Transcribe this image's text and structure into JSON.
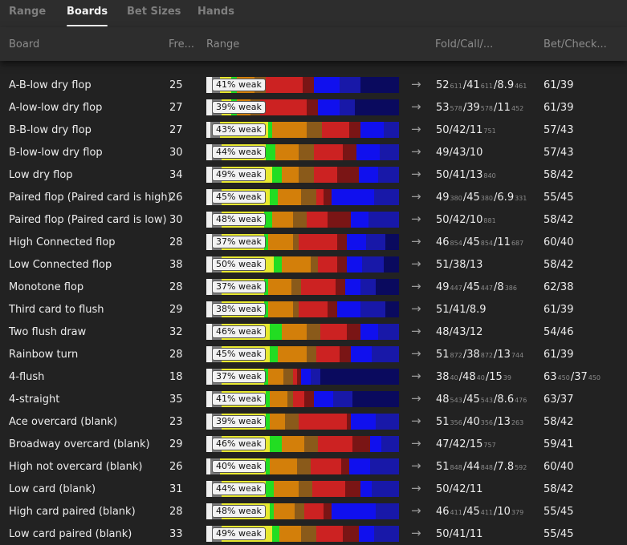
{
  "tabs": [
    {
      "label": "Range",
      "active": false
    },
    {
      "label": "Boards",
      "active": true
    },
    {
      "label": "Bet Sizes",
      "active": false
    },
    {
      "label": "Hands",
      "active": false
    }
  ],
  "columns": {
    "board": "Board",
    "freq": "Fre...",
    "range": "Range",
    "fold_call": "Fold/Call/...",
    "bet_check": "Bet/Check..."
  },
  "arrow": "→",
  "colors": {
    "white": "#f0f0f0",
    "grey": "#7a7a7a",
    "yellow": "#e8e830",
    "green": "#22dd22",
    "orange": "#d37f0a",
    "brown": "#8a5a1a",
    "red": "#cc2222",
    "darkred": "#7a1515",
    "blue": "#1010ee",
    "midblue": "#1818a8",
    "navy": "#0a0a5e"
  },
  "rows": [
    {
      "board": "A-B-low dry flop",
      "freq": "25",
      "weak": "41% weak",
      "bar": [
        [
          "white",
          3
        ],
        [
          "grey",
          4
        ],
        [
          "yellow",
          6
        ],
        [
          "green",
          3
        ],
        [
          "orange",
          9
        ],
        [
          "brown",
          6
        ],
        [
          "red",
          19
        ],
        [
          "darkred",
          6
        ],
        [
          "blue",
          13
        ],
        [
          "midblue",
          11
        ],
        [
          "navy",
          20
        ]
      ],
      "fold": [
        {
          "v": "52",
          "s": "611"
        },
        {
          "v": "/41",
          "s": "611"
        },
        {
          "v": "/8.9",
          "s": "461"
        }
      ],
      "bet": "61/39"
    },
    {
      "board": "A-low-low dry flop",
      "freq": "27",
      "weak": "39% weak",
      "bar": [
        [
          "white",
          3
        ],
        [
          "grey",
          5
        ],
        [
          "yellow",
          5
        ],
        [
          "green",
          3
        ],
        [
          "orange",
          7
        ],
        [
          "brown",
          5
        ],
        [
          "red",
          24
        ],
        [
          "darkred",
          6
        ],
        [
          "blue",
          11
        ],
        [
          "midblue",
          8
        ],
        [
          "navy",
          23
        ]
      ],
      "fold": [
        {
          "v": "53",
          "s": "578"
        },
        {
          "v": "/39",
          "s": "578"
        },
        {
          "v": "/11",
          "s": "452"
        }
      ],
      "bet": "61/39"
    },
    {
      "board": "B-B-low dry flop",
      "freq": "27",
      "weak": "43% weak",
      "bar": [
        [
          "white",
          2
        ],
        [
          "grey",
          5
        ],
        [
          "yellow",
          25
        ],
        [
          "green",
          2
        ],
        [
          "orange",
          18
        ],
        [
          "brown",
          8
        ],
        [
          "red",
          14
        ],
        [
          "darkred",
          6
        ],
        [
          "blue",
          12
        ],
        [
          "midblue",
          8
        ],
        [
          "navy",
          0
        ]
      ],
      "fold": [
        {
          "v": "50/42/11",
          "s": "751"
        }
      ],
      "bet": "57/43"
    },
    {
      "board": "B-low-low dry flop",
      "freq": "30",
      "weak": "44% weak",
      "bar": [
        [
          "white",
          3
        ],
        [
          "grey",
          5
        ],
        [
          "yellow",
          23
        ],
        [
          "green",
          5
        ],
        [
          "orange",
          12
        ],
        [
          "brown",
          8
        ],
        [
          "red",
          15
        ],
        [
          "darkred",
          7
        ],
        [
          "blue",
          12
        ],
        [
          "midblue",
          10
        ],
        [
          "navy",
          0
        ]
      ],
      "fold": [
        {
          "v": "49/43/10",
          "s": ""
        }
      ],
      "bet": "57/43"
    },
    {
      "board": "Low dry flop",
      "freq": "34",
      "weak": "49% weak",
      "bar": [
        [
          "white",
          3
        ],
        [
          "grey",
          5
        ],
        [
          "yellow",
          26
        ],
        [
          "green",
          5
        ],
        [
          "orange",
          9
        ],
        [
          "brown",
          8
        ],
        [
          "red",
          12
        ],
        [
          "darkred",
          11
        ],
        [
          "blue",
          10
        ],
        [
          "midblue",
          11
        ],
        [
          "navy",
          0
        ]
      ],
      "fold": [
        {
          "v": "50/41/13",
          "s": "840"
        }
      ],
      "bet": "58/42"
    },
    {
      "board": "Paired flop (Paired card is high)",
      "freq": "26",
      "weak": "45% weak",
      "bar": [
        [
          "white",
          3
        ],
        [
          "grey",
          5
        ],
        [
          "yellow",
          25
        ],
        [
          "green",
          4
        ],
        [
          "orange",
          12
        ],
        [
          "brown",
          8
        ],
        [
          "red",
          4
        ],
        [
          "darkred",
          4
        ],
        [
          "blue",
          22
        ],
        [
          "midblue",
          13
        ],
        [
          "navy",
          0
        ]
      ],
      "fold": [
        {
          "v": "49",
          "s": "380"
        },
        {
          "v": "/45",
          "s": "380"
        },
        {
          "v": "/6.9",
          "s": "331"
        }
      ],
      "bet": "55/45"
    },
    {
      "board": "Paired flop (Paired card is low)",
      "freq": "30",
      "weak": "48% weak",
      "bar": [
        [
          "white",
          3
        ],
        [
          "grey",
          5
        ],
        [
          "yellow",
          22
        ],
        [
          "green",
          4
        ],
        [
          "orange",
          11
        ],
        [
          "brown",
          7
        ],
        [
          "red",
          11
        ],
        [
          "darkred",
          12
        ],
        [
          "blue",
          9
        ],
        [
          "midblue",
          16
        ],
        [
          "navy",
          0
        ]
      ],
      "fold": [
        {
          "v": "50/42/10",
          "s": "881"
        }
      ],
      "bet": "58/42"
    },
    {
      "board": "High Connected flop",
      "freq": "28",
      "weak": "37% weak",
      "bar": [
        [
          "white",
          3
        ],
        [
          "grey",
          5
        ],
        [
          "yellow",
          22
        ],
        [
          "green",
          2
        ],
        [
          "orange",
          13
        ],
        [
          "brown",
          3
        ],
        [
          "red",
          20
        ],
        [
          "darkred",
          5
        ],
        [
          "blue",
          10
        ],
        [
          "midblue",
          10
        ],
        [
          "navy",
          7
        ]
      ],
      "fold": [
        {
          "v": "46",
          "s": "854"
        },
        {
          "v": "/45",
          "s": "854"
        },
        {
          "v": "/11",
          "s": "687"
        }
      ],
      "bet": "60/40"
    },
    {
      "board": "Low Connected flop",
      "freq": "38",
      "weak": "50% weak",
      "bar": [
        [
          "white",
          3
        ],
        [
          "grey",
          5
        ],
        [
          "yellow",
          27
        ],
        [
          "green",
          4
        ],
        [
          "orange",
          15
        ],
        [
          "brown",
          4
        ],
        [
          "red",
          10
        ],
        [
          "darkred",
          5
        ],
        [
          "blue",
          8
        ],
        [
          "midblue",
          11
        ],
        [
          "navy",
          8
        ]
      ],
      "fold": [
        {
          "v": "51/38/13",
          "s": ""
        }
      ],
      "bet": "58/42"
    },
    {
      "board": "Monotone flop",
      "freq": "28",
      "weak": "37% weak",
      "bar": [
        [
          "white",
          3
        ],
        [
          "grey",
          5
        ],
        [
          "yellow",
          22
        ],
        [
          "green",
          2
        ],
        [
          "orange",
          12
        ],
        [
          "brown",
          5
        ],
        [
          "red",
          18
        ],
        [
          "darkred",
          5
        ],
        [
          "blue",
          8
        ],
        [
          "midblue",
          8
        ],
        [
          "navy",
          12
        ]
      ],
      "fold": [
        {
          "v": "49",
          "s": "447"
        },
        {
          "v": "/45",
          "s": "447"
        },
        {
          "v": "/8",
          "s": "386"
        }
      ],
      "bet": "62/38"
    },
    {
      "board": "Third card to flush",
      "freq": "29",
      "weak": "38% weak",
      "bar": [
        [
          "white",
          3
        ],
        [
          "grey",
          5
        ],
        [
          "yellow",
          22
        ],
        [
          "green",
          2
        ],
        [
          "orange",
          13
        ],
        [
          "brown",
          3
        ],
        [
          "red",
          15
        ],
        [
          "darkred",
          5
        ],
        [
          "blue",
          12
        ],
        [
          "midblue",
          13
        ],
        [
          "navy",
          7
        ]
      ],
      "fold": [
        {
          "v": "51/41/8.9",
          "s": ""
        }
      ],
      "bet": "61/39"
    },
    {
      "board": "Two flush draw",
      "freq": "32",
      "weak": "46% weak",
      "bar": [
        [
          "white",
          3
        ],
        [
          "grey",
          5
        ],
        [
          "yellow",
          25
        ],
        [
          "green",
          6
        ],
        [
          "orange",
          13
        ],
        [
          "brown",
          7
        ],
        [
          "red",
          14
        ],
        [
          "darkred",
          7
        ],
        [
          "blue",
          9
        ],
        [
          "midblue",
          11
        ],
        [
          "navy",
          0
        ]
      ],
      "fold": [
        {
          "v": "48/43/12",
          "s": ""
        }
      ],
      "bet": "54/46"
    },
    {
      "board": "Rainbow turn",
      "freq": "28",
      "weak": "45% weak",
      "bar": [
        [
          "white",
          3
        ],
        [
          "grey",
          5
        ],
        [
          "yellow",
          25
        ],
        [
          "green",
          4
        ],
        [
          "orange",
          15
        ],
        [
          "brown",
          5
        ],
        [
          "red",
          12
        ],
        [
          "darkred",
          6
        ],
        [
          "blue",
          11
        ],
        [
          "midblue",
          14
        ],
        [
          "navy",
          0
        ]
      ],
      "fold": [
        {
          "v": "51",
          "s": "872"
        },
        {
          "v": "/38",
          "s": "872"
        },
        {
          "v": "/13",
          "s": "744"
        }
      ],
      "bet": "61/39"
    },
    {
      "board": "4-flush",
      "freq": "18",
      "weak": "37% weak",
      "bar": [
        [
          "white",
          3
        ],
        [
          "grey",
          5
        ],
        [
          "yellow",
          22
        ],
        [
          "green",
          2
        ],
        [
          "orange",
          8
        ],
        [
          "brown",
          5
        ],
        [
          "red",
          2
        ],
        [
          "darkred",
          2
        ],
        [
          "blue",
          5
        ],
        [
          "midblue",
          5
        ],
        [
          "navy",
          41
        ]
      ],
      "fold": [
        {
          "v": "38",
          "s": "40"
        },
        {
          "v": "/48",
          "s": "40"
        },
        {
          "v": "/15",
          "s": "39"
        }
      ],
      "bet": "63",
      "bet_sub": [
        {
          "v": "/37",
          "s": "450"
        }
      ],
      "bet_s": "450"
    },
    {
      "board": "4-straight",
      "freq": "35",
      "weak": "41% weak",
      "bar": [
        [
          "white",
          3
        ],
        [
          "grey",
          5
        ],
        [
          "yellow",
          23
        ],
        [
          "green",
          2
        ],
        [
          "orange",
          9
        ],
        [
          "brown",
          3
        ],
        [
          "red",
          6
        ],
        [
          "darkred",
          5
        ],
        [
          "blue",
          10
        ],
        [
          "midblue",
          10
        ],
        [
          "navy",
          24
        ]
      ],
      "fold": [
        {
          "v": "48",
          "s": "543"
        },
        {
          "v": "/45",
          "s": "543"
        },
        {
          "v": "/8.6",
          "s": "476"
        }
      ],
      "bet": "63/37"
    },
    {
      "board": "Ace overcard (blank)",
      "freq": "23",
      "weak": "39% weak",
      "bar": [
        [
          "white",
          3
        ],
        [
          "grey",
          5
        ],
        [
          "yellow",
          23
        ],
        [
          "green",
          2
        ],
        [
          "orange",
          8
        ],
        [
          "brown",
          7
        ],
        [
          "red",
          25
        ],
        [
          "darkred",
          2
        ],
        [
          "blue",
          13
        ],
        [
          "midblue",
          12
        ],
        [
          "navy",
          0
        ]
      ],
      "fold": [
        {
          "v": "51",
          "s": "356"
        },
        {
          "v": "/40",
          "s": "356"
        },
        {
          "v": "/13",
          "s": "263"
        }
      ],
      "bet": "58/42"
    },
    {
      "board": "Broadway overcard (blank)",
      "freq": "29",
      "weak": "46% weak",
      "bar": [
        [
          "white",
          3
        ],
        [
          "grey",
          5
        ],
        [
          "yellow",
          25
        ],
        [
          "green",
          6
        ],
        [
          "orange",
          12
        ],
        [
          "brown",
          7
        ],
        [
          "red",
          18
        ],
        [
          "darkred",
          9
        ],
        [
          "blue",
          6
        ],
        [
          "midblue",
          9
        ],
        [
          "navy",
          0
        ]
      ],
      "fold": [
        {
          "v": "47/42/15",
          "s": "757"
        }
      ],
      "bet": "59/41"
    },
    {
      "board": "High not overcard (blank)",
      "freq": "26",
      "weak": "40% weak",
      "bar": [
        [
          "white",
          2
        ],
        [
          "grey",
          5
        ],
        [
          "yellow",
          24
        ],
        [
          "green",
          2
        ],
        [
          "orange",
          14
        ],
        [
          "brown",
          7
        ],
        [
          "red",
          16
        ],
        [
          "darkred",
          4
        ],
        [
          "blue",
          11
        ],
        [
          "midblue",
          15
        ],
        [
          "navy",
          0
        ]
      ],
      "fold": [
        {
          "v": "51",
          "s": "848"
        },
        {
          "v": "/44",
          "s": "848"
        },
        {
          "v": "/7.8",
          "s": "592"
        }
      ],
      "bet": "60/40"
    },
    {
      "board": "Low card (blank)",
      "freq": "31",
      "weak": "44% weak",
      "bar": [
        [
          "white",
          3
        ],
        [
          "grey",
          5
        ],
        [
          "yellow",
          23
        ],
        [
          "green",
          4
        ],
        [
          "orange",
          13
        ],
        [
          "brown",
          7
        ],
        [
          "red",
          17
        ],
        [
          "darkred",
          8
        ],
        [
          "blue",
          6
        ],
        [
          "midblue",
          14
        ],
        [
          "navy",
          0
        ]
      ],
      "fold": [
        {
          "v": "50/42/11",
          "s": ""
        }
      ],
      "bet": "58/42"
    },
    {
      "board": "High card paired (blank)",
      "freq": "28",
      "weak": "48% weak",
      "bar": [
        [
          "white",
          3
        ],
        [
          "grey",
          5
        ],
        [
          "yellow",
          25
        ],
        [
          "green",
          2
        ],
        [
          "orange",
          11
        ],
        [
          "brown",
          5
        ],
        [
          "red",
          10
        ],
        [
          "darkred",
          4
        ],
        [
          "blue",
          23
        ],
        [
          "midblue",
          12
        ],
        [
          "navy",
          0
        ]
      ],
      "fold": [
        {
          "v": "46",
          "s": "411"
        },
        {
          "v": "/45",
          "s": "411"
        },
        {
          "v": "/10",
          "s": "379"
        }
      ],
      "bet": "55/45"
    },
    {
      "board": "Low card paired (blank)",
      "freq": "33",
      "weak": "49% weak",
      "bar": [
        [
          "white",
          3
        ],
        [
          "grey",
          5
        ],
        [
          "yellow",
          26
        ],
        [
          "green",
          4
        ],
        [
          "orange",
          11
        ],
        [
          "brown",
          8
        ],
        [
          "red",
          14
        ],
        [
          "darkred",
          8
        ],
        [
          "blue",
          8
        ],
        [
          "midblue",
          13
        ],
        [
          "navy",
          0
        ]
      ],
      "fold": [
        {
          "v": "50/41/11",
          "s": ""
        }
      ],
      "bet": "55/45"
    }
  ]
}
